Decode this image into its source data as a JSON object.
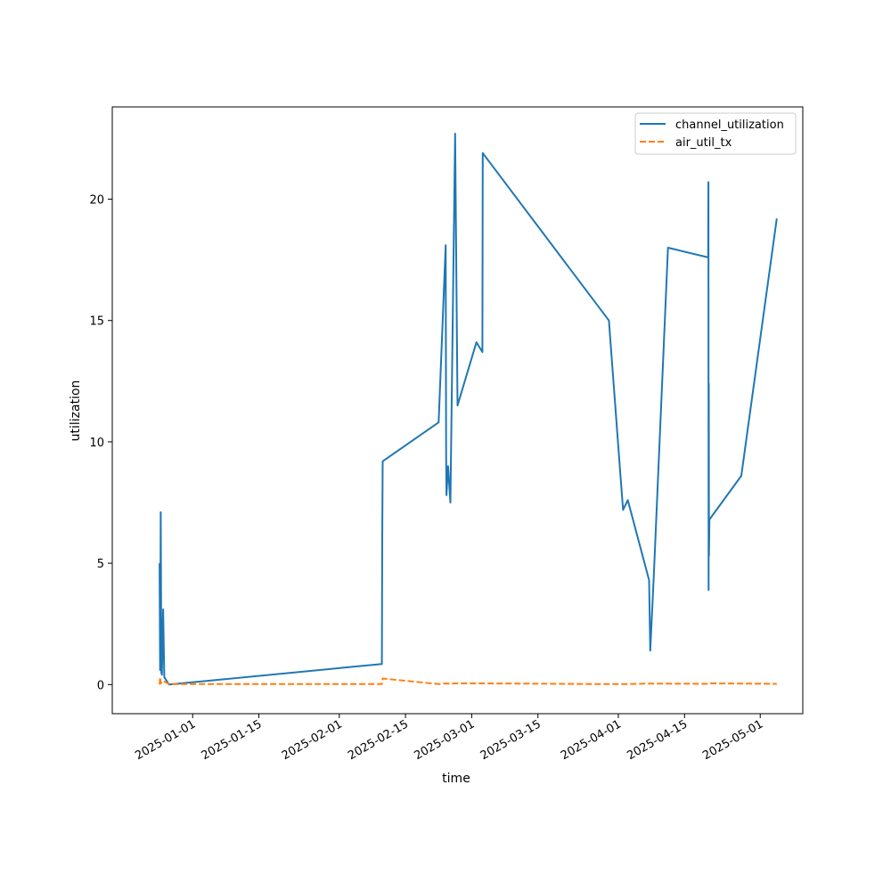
{
  "chart_data": {
    "type": "line",
    "title": "",
    "xlabel": "time",
    "ylabel": "utilization",
    "x_ticks": [
      "2025-01-01",
      "2025-01-15",
      "2025-02-01",
      "2025-02-15",
      "2025-03-01",
      "2025-03-15",
      "2025-04-01",
      "2025-04-15",
      "2025-05-01"
    ],
    "y_ticks": [
      0,
      5,
      10,
      15,
      20
    ],
    "xlim": [
      "2024-12-15",
      "2025-05-10"
    ],
    "ylim": [
      -1.2,
      23.8
    ],
    "grid": false,
    "legend_position": "top-right",
    "series": [
      {
        "name": "channel_utilization",
        "color": "#1f77b4",
        "dash": "solid",
        "points": [
          [
            "2024-12-25 00:00",
            5.0
          ],
          [
            "2024-12-25 03:00",
            0.6
          ],
          [
            "2024-12-25 06:00",
            7.1
          ],
          [
            "2024-12-25 09:00",
            0.5
          ],
          [
            "2024-12-25 12:00",
            0.4
          ],
          [
            "2024-12-25 18:00",
            3.1
          ],
          [
            "2024-12-26 00:00",
            0.3
          ],
          [
            "2024-12-27 00:00",
            0.0
          ],
          [
            "2025-02-10 00:00",
            0.85
          ],
          [
            "2025-02-10 02:00",
            6.0
          ],
          [
            "2025-02-10 04:00",
            9.2
          ],
          [
            "2025-02-22 00:00",
            10.8
          ],
          [
            "2025-02-23 12:00",
            18.1
          ],
          [
            "2025-02-23 14:00",
            9.5
          ],
          [
            "2025-02-23 16:00",
            7.8
          ],
          [
            "2025-02-24 00:00",
            9.0
          ],
          [
            "2025-02-24 12:00",
            7.5
          ],
          [
            "2025-02-25 12:00",
            22.7
          ],
          [
            "2025-02-26 00:00",
            11.5
          ],
          [
            "2025-03-02 00:00",
            14.1
          ],
          [
            "2025-03-03 06:00",
            13.7
          ],
          [
            "2025-03-03 08:00",
            21.9
          ],
          [
            "2025-03-30 00:00",
            15.0
          ],
          [
            "2025-04-01 12:00",
            8.5
          ],
          [
            "2025-04-02 00:00",
            7.2
          ],
          [
            "2025-04-03 00:00",
            7.6
          ],
          [
            "2025-04-07 12:00",
            4.3
          ],
          [
            "2025-04-07 18:00",
            1.4
          ],
          [
            "2025-04-08 12:00",
            4.5
          ],
          [
            "2025-04-11 12:00",
            18.0
          ],
          [
            "2025-04-20 00:00",
            17.6
          ],
          [
            "2025-04-20 01:00",
            20.7
          ],
          [
            "2025-04-20 02:00",
            3.9
          ],
          [
            "2025-04-20 03:00",
            12.4
          ],
          [
            "2025-04-20 04:00",
            5.3
          ],
          [
            "2025-04-20 06:00",
            6.8
          ],
          [
            "2025-04-27 00:00",
            8.6
          ],
          [
            "2025-05-04 12:00",
            19.2
          ]
        ]
      },
      {
        "name": "air_util_tx",
        "color": "#ff7f0e",
        "dash": "dashed",
        "points": [
          [
            "2024-12-25 00:00",
            0.0
          ],
          [
            "2024-12-25 03:00",
            0.3
          ],
          [
            "2024-12-25 06:00",
            0.05
          ],
          [
            "2024-12-25 18:00",
            0.15
          ],
          [
            "2024-12-27 00:00",
            0.02
          ],
          [
            "2025-02-10 00:00",
            0.02
          ],
          [
            "2025-02-10 04:00",
            0.25
          ],
          [
            "2025-02-22 00:00",
            0.02
          ],
          [
            "2025-02-23 12:00",
            0.05
          ],
          [
            "2025-02-24 12:00",
            0.03
          ],
          [
            "2025-02-25 12:00",
            0.05
          ],
          [
            "2025-03-03 08:00",
            0.05
          ],
          [
            "2025-03-30 00:00",
            0.02
          ],
          [
            "2025-04-02 00:00",
            0.02
          ],
          [
            "2025-04-07 18:00",
            0.04
          ],
          [
            "2025-04-20 00:00",
            0.03
          ],
          [
            "2025-04-20 03:00",
            0.05
          ],
          [
            "2025-04-27 00:00",
            0.04
          ],
          [
            "2025-05-04 12:00",
            0.03
          ]
        ]
      }
    ]
  }
}
